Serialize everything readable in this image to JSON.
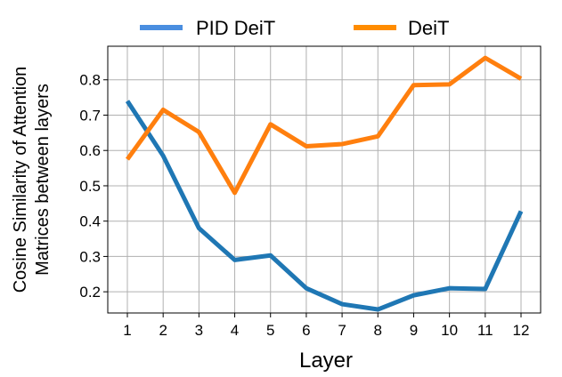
{
  "chart_data": {
    "type": "line",
    "title": "",
    "xlabel": "Layer",
    "ylabel_lines": [
      "Cosine Similarity of Attention",
      "Matrices between layers"
    ],
    "x": [
      1,
      2,
      3,
      4,
      5,
      6,
      7,
      8,
      9,
      10,
      11,
      12
    ],
    "x_tick_labels": [
      "1",
      "2",
      "3",
      "4",
      "5",
      "6",
      "7",
      "8",
      "9",
      "10",
      "11",
      "12"
    ],
    "ylim": [
      0.14,
      0.895
    ],
    "y_ticks": [
      0.2,
      0.3,
      0.4,
      0.5,
      0.6,
      0.7,
      0.8
    ],
    "y_tick_labels": [
      "0.2",
      "0.3",
      "0.4",
      "0.5",
      "0.6",
      "0.7",
      "0.8"
    ],
    "grid": true,
    "legend_position": "top",
    "series": [
      {
        "name": "PID DeiT",
        "color": "#1f77b4",
        "legend_color": "#4a8ee0",
        "values": [
          0.74,
          0.585,
          0.38,
          0.29,
          0.303,
          0.21,
          0.165,
          0.15,
          0.19,
          0.21,
          0.208,
          0.428
        ]
      },
      {
        "name": "DeiT",
        "color": "#ff7f0e",
        "legend_color": "#ff8c00",
        "values": [
          0.575,
          0.715,
          0.652,
          0.48,
          0.674,
          0.612,
          0.618,
          0.64,
          0.785,
          0.787,
          0.862,
          0.803
        ]
      }
    ]
  }
}
